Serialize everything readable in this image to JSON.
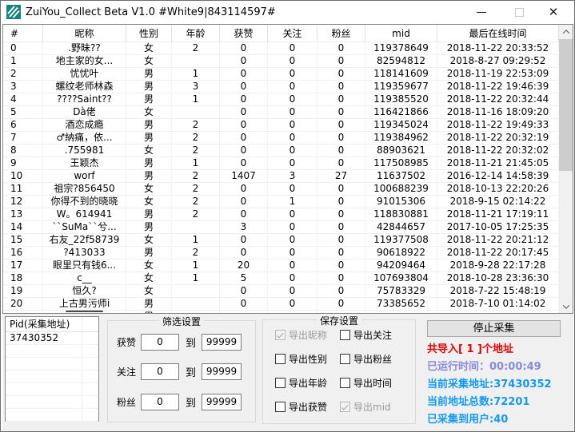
{
  "window": {
    "title": "ZuiYou_Collect Beta V1.0 #White9|843114597#",
    "close_glyph": "✕"
  },
  "table": {
    "headers": [
      "#",
      "昵称",
      "性别",
      "年龄",
      "获赞",
      "关注",
      "粉丝",
      "mid",
      "最后在线时间"
    ],
    "rows": [
      [
        "0",
        ".野昧??",
        "女",
        "2",
        "0",
        "0",
        "0",
        "119378649",
        "2018-11-22 20:33:52"
      ],
      [
        "1",
        "地主家的女...",
        "女",
        "",
        "0",
        "0",
        "0",
        "82594812",
        "2018-8-27 09:29:52"
      ],
      [
        "2",
        "忧忧叶",
        "男",
        "1",
        "0",
        "0",
        "0",
        "118141609",
        "2018-11-19 22:53:09"
      ],
      [
        "3",
        "螺纹老师林森",
        "男",
        "3",
        "0",
        "0",
        "0",
        "119359677",
        "2018-11-22 19:46:39"
      ],
      [
        "4",
        "????Saint??",
        "男",
        "1",
        "0",
        "0",
        "0",
        "119385520",
        "2018-11-22 20:32:44"
      ],
      [
        "5",
        "Dà佬",
        "女",
        "",
        "0",
        "0",
        "0",
        "116421866",
        "2018-11-16 18:09:20"
      ],
      [
        "6",
        "酒恋成瘾",
        "男",
        "2",
        "0",
        "0",
        "0",
        "119345024",
        "2018-11-22 19:49:33"
      ],
      [
        "7",
        "♂納痛，依...",
        "男",
        "2",
        "0",
        "0",
        "0",
        "119384962",
        "2018-11-22 20:32:19"
      ],
      [
        "8",
        ".755981",
        "女",
        "2",
        "0",
        "0",
        "0",
        "88903621",
        "2018-11-22 20:32:02"
      ],
      [
        "9",
        "王颖杰",
        "男",
        "1",
        "0",
        "0",
        "0",
        "117508985",
        "2018-11-21 21:45:05"
      ],
      [
        "10",
        "worf",
        "男",
        "2",
        "1407",
        "3",
        "27",
        "11637502",
        "2016-12-14 14:58:39"
      ],
      [
        "11",
        "祖宗?856450",
        "女",
        "2",
        "0",
        "0",
        "0",
        "100688239",
        "2018-10-13 22:20:26"
      ],
      [
        "12",
        "你得不到的晓晓",
        "女",
        "2",
        "0",
        "1",
        "0",
        "91015306",
        "2018-9-15 02:14:22"
      ],
      [
        "13",
        "W。614941",
        "男",
        "2",
        "0",
        "0",
        "0",
        "118830881",
        "2018-11-21 17:19:11"
      ],
      [
        "14",
        "``SuMa``兮...",
        "男",
        "",
        "3",
        "0",
        "0",
        "42844657",
        "2017-10-05 17:25:35"
      ],
      [
        "15",
        "右友_22f58739",
        "女",
        "1",
        "0",
        "0",
        "0",
        "119377508",
        "2018-11-22 20:21:12"
      ],
      [
        "16",
        "?413033",
        "男",
        "2",
        "0",
        "0",
        "0",
        "90618922",
        "2018-11-22 20:17:45"
      ],
      [
        "17",
        "眼里只有钱6...",
        "女",
        "1",
        "20",
        "0",
        "0",
        "94209464",
        "2018-9-28 22:17:28"
      ],
      [
        "18",
        "c__",
        "女",
        "1",
        "5",
        "0",
        "0",
        "107693804",
        "2018-10-28 23:36:30"
      ],
      [
        "19",
        "恒久?",
        "女",
        "",
        "0",
        "0",
        "0",
        "75783329",
        "2018-7-22 15:48:19"
      ],
      [
        "20",
        "上古男污师i",
        "男",
        "",
        "0",
        "0",
        "0",
        "73385652",
        "2018-7-10 01:14:02"
      ]
    ],
    "partial_row": {
      "nickname": "▔▔▔▔▔",
      "gender": "男"
    }
  },
  "pid_list": {
    "header": "Pid(采集地址)",
    "items": [
      "37430352"
    ]
  },
  "filter_settings": {
    "title": "筛选设置",
    "rows": [
      {
        "label": "获赞",
        "from": "0",
        "to_word": "到",
        "to": "99999"
      },
      {
        "label": "关注",
        "from": "0",
        "to_word": "到",
        "to": "99999"
      },
      {
        "label": "粉丝",
        "from": "0",
        "to_word": "到",
        "to": "99999"
      }
    ]
  },
  "save_settings": {
    "title": "保存设置",
    "checkboxes": [
      {
        "label": "导出昵称",
        "checked": true,
        "disabled": true
      },
      {
        "label": "导出性别",
        "checked": false,
        "disabled": false
      },
      {
        "label": "导出年龄",
        "checked": false,
        "disabled": false
      },
      {
        "label": "导出获赞",
        "checked": false,
        "disabled": false
      },
      {
        "label": "导出关注",
        "checked": false,
        "disabled": false
      },
      {
        "label": "导出粉丝",
        "checked": false,
        "disabled": false
      },
      {
        "label": "导出时间",
        "checked": false,
        "disabled": false
      },
      {
        "label": "导出mid",
        "checked": true,
        "disabled": true
      }
    ]
  },
  "collector_status": {
    "stop_button": "停止采集",
    "imported": "共导入[ 1 ]个地址",
    "runtime": "已运行时间：00:00:49",
    "current_address": "当前采集地址:37430352",
    "address_total": "当前地址总数:72201",
    "users_collected": "已采集到用户:40"
  },
  "colors": {
    "status_red": "#e60000",
    "status_periwinkle": "#8a8ad8",
    "status_blue": "#149af0",
    "logo_teal": "#17837d"
  }
}
